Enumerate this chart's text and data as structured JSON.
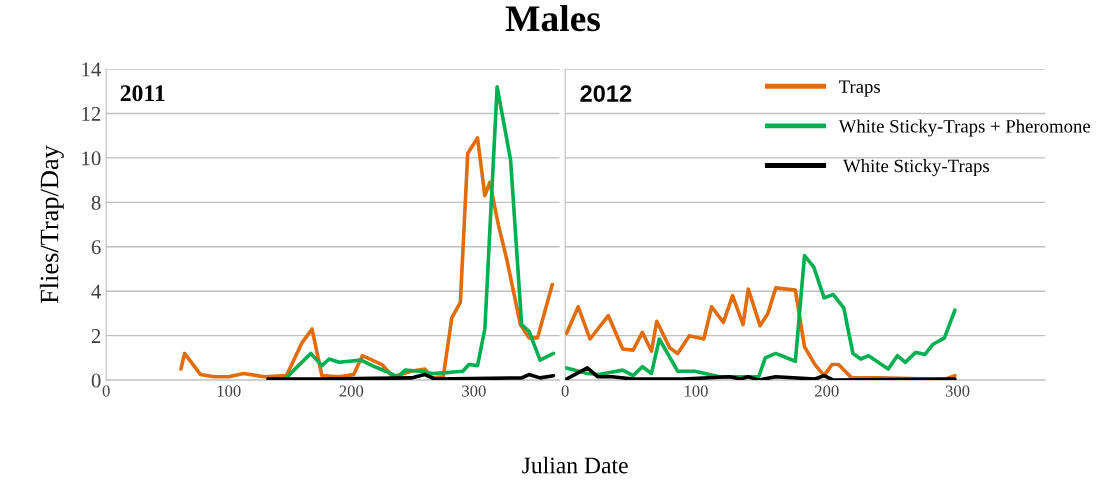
{
  "chart_data": [
    {
      "type": "line",
      "title": "Males",
      "xlabel": "Julian Date",
      "ylabel": "Flies/Trap/Day",
      "annotations": [
        "2011"
      ],
      "xlim": [
        0,
        370
      ],
      "xticks": [
        0,
        100,
        200,
        300
      ],
      "ylim": [
        0,
        14
      ],
      "yticks": [
        0,
        2,
        4,
        6,
        8,
        10,
        12,
        14
      ],
      "grid": "y",
      "legend": false,
      "series": [
        {
          "color": "#e36c0a",
          "x": [
            61,
            64,
            77,
            88,
            100,
            112,
            129,
            147,
            160,
            168,
            176,
            190,
            202,
            209,
            225,
            234,
            249,
            260,
            266,
            275,
            282,
            289,
            295,
            303,
            309,
            313,
            320,
            327,
            338,
            345,
            352,
            364
          ],
          "values": [
            0.5,
            1.2,
            0.25,
            0.15,
            0.15,
            0.3,
            0.15,
            0.2,
            1.7,
            2.3,
            0.2,
            0.15,
            0.25,
            1.1,
            0.7,
            0.15,
            0.4,
            0.5,
            0.1,
            0.15,
            2.8,
            3.5,
            10.2,
            10.9,
            8.3,
            8.9,
            7,
            5.4,
            2.5,
            1.9,
            1.9,
            4.3
          ]
        },
        {
          "color": "#00b050",
          "x": [
            147,
            155,
            167,
            176,
            182,
            190,
            208,
            217,
            228,
            238,
            244,
            256,
            266,
            281,
            291,
            296,
            303,
            309,
            319,
            330,
            339,
            345,
            354,
            365
          ],
          "values": [
            0.1,
            0.55,
            1.2,
            0.65,
            0.95,
            0.8,
            0.9,
            0.65,
            0.4,
            0.15,
            0.45,
            0.4,
            0.3,
            0.35,
            0.4,
            0.7,
            0.65,
            2.3,
            13.2,
            9.9,
            2.5,
            2.2,
            0.9,
            1.2
          ]
        },
        {
          "color": "#000000",
          "x": [
            132,
            176,
            249,
            260,
            268,
            339,
            345,
            354,
            365
          ],
          "values": [
            0.05,
            0.05,
            0.1,
            0.25,
            0.05,
            0.1,
            0.25,
            0.1,
            0.2
          ]
        }
      ]
    },
    {
      "type": "line",
      "annotations": [
        "2012"
      ],
      "xlim": [
        0,
        367
      ],
      "xticks": [
        0,
        100,
        200,
        300
      ],
      "ylim": [
        0,
        14
      ],
      "yticks": [
        0,
        2,
        4,
        6,
        8,
        10,
        12,
        14
      ],
      "grid": "y",
      "legend": "top right",
      "tick_labels": "x",
      "series": [
        {
          "name": "Traps",
          "color": "#e36c0a",
          "x": [
            1,
            10,
            19,
            33,
            44,
            52,
            59,
            66,
            70,
            80,
            86,
            95,
            106,
            112,
            121,
            128,
            136,
            140,
            149,
            155,
            161,
            176,
            183,
            191,
            198,
            204,
            209,
            219,
            240,
            281,
            291,
            298
          ],
          "values": [
            2.1,
            3.3,
            1.85,
            2.9,
            1.4,
            1.35,
            2.15,
            1.3,
            2.65,
            1.45,
            1.2,
            2,
            1.85,
            3.3,
            2.6,
            3.8,
            2.5,
            4.1,
            2.45,
            3,
            4.15,
            4.05,
            1.5,
            0.7,
            0.2,
            0.7,
            0.7,
            0.1,
            0.1,
            0.05,
            0.05,
            0.2
          ]
        },
        {
          "name": "White Sticky-Traps + Pheromone",
          "color": "#00b050",
          "x": [
            1,
            17,
            26,
            44,
            52,
            59,
            66,
            72,
            86,
            99,
            107,
            118,
            148,
            153,
            161,
            176,
            183,
            190,
            198,
            205,
            213,
            220,
            226,
            232,
            247,
            254,
            260,
            268,
            275,
            281,
            290,
            298
          ],
          "values": [
            0.55,
            0.3,
            0.25,
            0.45,
            0.2,
            0.6,
            0.3,
            1.85,
            0.4,
            0.4,
            0.3,
            0.15,
            0.15,
            1,
            1.2,
            0.85,
            5.6,
            5.1,
            3.7,
            3.85,
            3.25,
            1.2,
            0.95,
            1.1,
            0.5,
            1.1,
            0.8,
            1.25,
            1.15,
            1.6,
            1.9,
            3.15
          ]
        },
        {
          "name": " White Sticky-Traps",
          "color": "#000000",
          "x": [
            1,
            17,
            25,
            36,
            52,
            90,
            126,
            134,
            140,
            148,
            161,
            191,
            198,
            205,
            298
          ],
          "values": [
            0.05,
            0.55,
            0.15,
            0.15,
            0.05,
            0.05,
            0.15,
            0.05,
            0.15,
            0.0,
            0.15,
            0.05,
            0.2,
            0.0,
            0.05
          ]
        }
      ]
    }
  ]
}
